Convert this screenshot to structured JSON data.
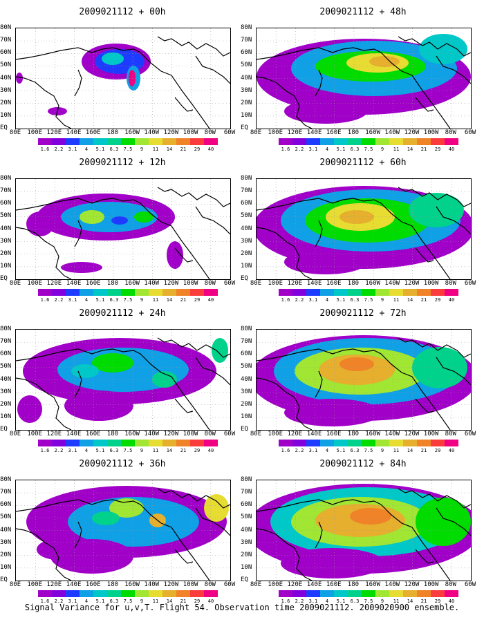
{
  "caption": "Signal Variance for u,v,T. Flight 54. Observation time 2009021112. 2009020900 ensemble.",
  "lat_ticks": [
    "80N",
    "70N",
    "60N",
    "50N",
    "40N",
    "30N",
    "20N",
    "10N",
    "EQ"
  ],
  "lon_ticks": [
    "80E",
    "100E",
    "120E",
    "140E",
    "160E",
    "180",
    "160W",
    "140W",
    "120W",
    "100W",
    "80W",
    "60W"
  ],
  "colorbar": {
    "labels": [
      "1.6",
      "2.2",
      "3.1",
      "4",
      "5.1",
      "6.3",
      "7.5",
      "9",
      "11",
      "14",
      "21",
      "29",
      "40"
    ],
    "colors": [
      "#a000c8",
      "#8200dc",
      "#1e3cff",
      "#0fa0e6",
      "#00c8c8",
      "#00d28c",
      "#00dc00",
      "#a0e632",
      "#e6dc32",
      "#e6af2d",
      "#f08228",
      "#fa3c3c",
      "#f00082"
    ]
  },
  "chart_data": [
    {
      "type": "heatmap",
      "title": "2009021112 + 00h",
      "lead_hours": 0,
      "field": "signal variance u,v,T",
      "x_range": [
        "80E",
        "60W"
      ],
      "y_range": [
        "EQ",
        "80N"
      ],
      "max_level": "40"
    },
    {
      "type": "heatmap",
      "title": "2009021112 + 12h",
      "lead_hours": 12,
      "field": "signal variance u,v,T",
      "x_range": [
        "80E",
        "60W"
      ],
      "y_range": [
        "EQ",
        "80N"
      ],
      "max_level": "11"
    },
    {
      "type": "heatmap",
      "title": "2009021112 + 24h",
      "lead_hours": 24,
      "field": "signal variance u,v,T",
      "x_range": [
        "80E",
        "60W"
      ],
      "y_range": [
        "EQ",
        "80N"
      ],
      "max_level": "11"
    },
    {
      "type": "heatmap",
      "title": "2009021112 + 36h",
      "lead_hours": 36,
      "field": "signal variance u,v,T",
      "x_range": [
        "80E",
        "60W"
      ],
      "y_range": [
        "EQ",
        "80N"
      ],
      "max_level": "14"
    },
    {
      "type": "heatmap",
      "title": "2009021112 + 48h",
      "lead_hours": 48,
      "field": "signal variance u,v,T",
      "x_range": [
        "80E",
        "60W"
      ],
      "y_range": [
        "EQ",
        "80N"
      ],
      "max_level": "14"
    },
    {
      "type": "heatmap",
      "title": "2009021112 + 60h",
      "lead_hours": 60,
      "field": "signal variance u,v,T",
      "x_range": [
        "80E",
        "60W"
      ],
      "y_range": [
        "EQ",
        "80N"
      ],
      "max_level": "14"
    },
    {
      "type": "heatmap",
      "title": "2009021112 + 72h",
      "lead_hours": 72,
      "field": "signal variance u,v,T",
      "x_range": [
        "80E",
        "60W"
      ],
      "y_range": [
        "EQ",
        "80N"
      ],
      "max_level": "21"
    },
    {
      "type": "heatmap",
      "title": "2009021112 + 84h",
      "lead_hours": 84,
      "field": "signal variance u,v,T",
      "x_range": [
        "80E",
        "60W"
      ],
      "y_range": [
        "EQ",
        "80N"
      ],
      "max_level": "29"
    }
  ]
}
